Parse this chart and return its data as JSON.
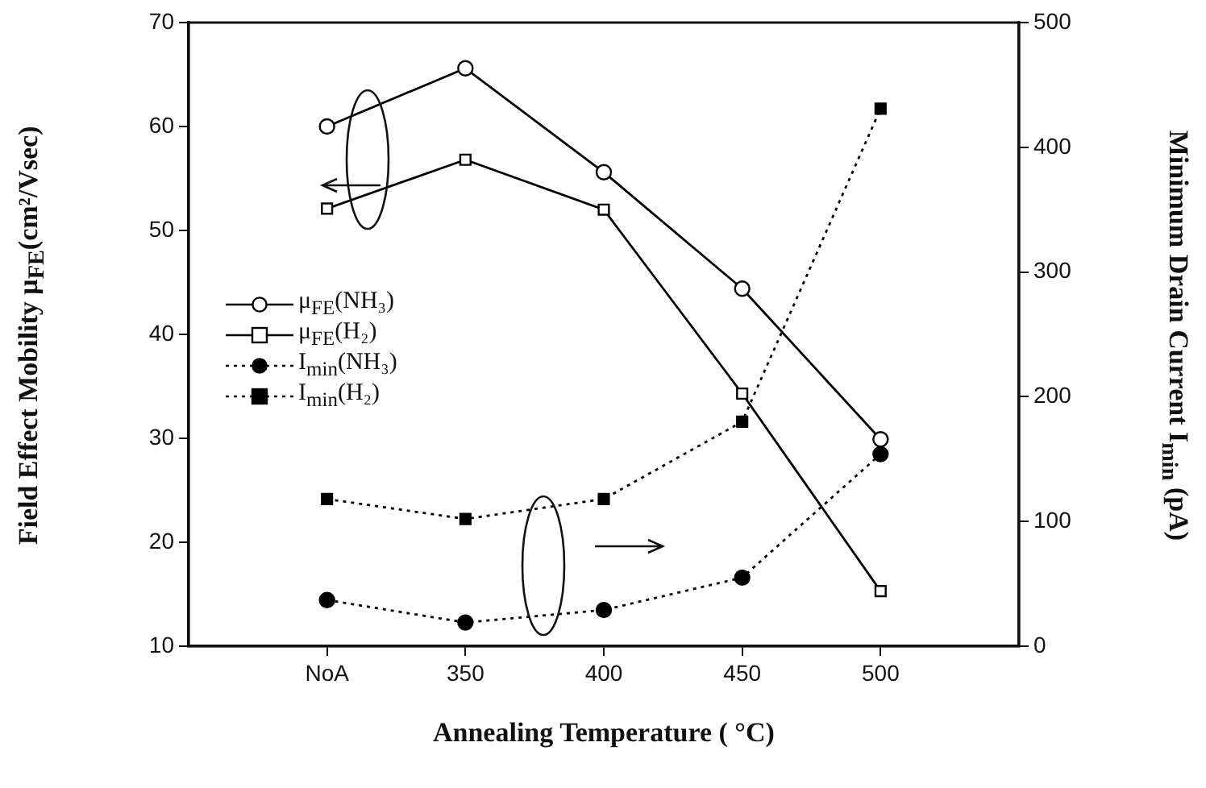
{
  "chart_data": {
    "type": "line",
    "xlabel": "Annealing Temperature ( °C)",
    "ylabel": "Field Effect Mobility μ$_{FE}$(cm²/Vsec)",
    "y2label": "Minimum Drain Current I$_{min}$ (pA)",
    "x": [
      300,
      350,
      400,
      450,
      500
    ],
    "xlim": [
      250,
      550
    ],
    "xticks": [
      {
        "value": 300,
        "label": "NoA"
      },
      350,
      400,
      450,
      500
    ],
    "ylim": [
      10,
      70
    ],
    "yticks": [
      10,
      20,
      30,
      40,
      50,
      60,
      70
    ],
    "y2lim": [
      0,
      500
    ],
    "y2ticks": [
      0,
      100,
      200,
      300,
      400,
      500
    ],
    "grid": false,
    "legend": "left",
    "series": [
      {
        "name": "μ$_{FE}$(NH₃)",
        "color": "#000000",
        "marker": "circle",
        "line_style": "solid",
        "values": [
          60.0,
          65.6,
          55.6,
          44.4,
          29.9
        ]
      },
      {
        "name": "μ$_{FE}$(H₂)",
        "color": "#000000",
        "marker": "square",
        "line_style": "solid",
        "values": [
          52.1,
          56.8,
          52.0,
          34.3,
          15.3
        ]
      },
      {
        "name": "I$_{min}$(NH₃)",
        "color": "#000000",
        "marker": "circle",
        "line_style": "dotted",
        "axis": "y2",
        "values": [
          37,
          19,
          29,
          55,
          154
        ]
      },
      {
        "name": "I$_{min}$(H₂)",
        "color": "#000000",
        "marker": "square",
        "line_style": "dotted",
        "axis": "y2",
        "values": [
          118,
          102,
          118,
          180,
          431
        ]
      }
    ]
  }
}
